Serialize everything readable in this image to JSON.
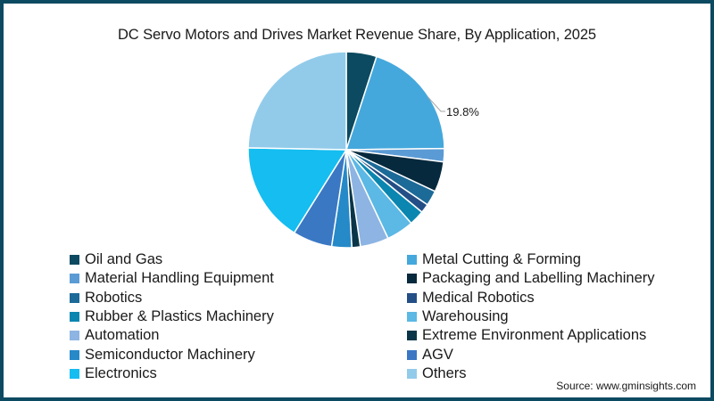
{
  "title": "DC Servo Motors and Drives Market Revenue Share, By Application, 2025",
  "source": "Source: www.gminsights.com",
  "frame_color": "#0c4a62",
  "chart_data": {
    "type": "pie",
    "title": "DC Servo Motors and Drives Market Revenue Share, By Application, 2025",
    "start_angle_deg": 0,
    "direction": "clockwise",
    "legend_position": "bottom",
    "categories": [
      "Oil and Gas",
      "Metal Cutting & Forming",
      "Material Handling Equipment",
      "Packaging and Labelling Machinery",
      "Robotics",
      "Medical Robotics",
      "Rubber & Plastics Machinery",
      "Warehousing",
      "Automation",
      "Extreme Environment Applications",
      "Semiconductor Machinery",
      "AGV",
      "Electronics",
      "Others"
    ],
    "values": [
      5.0,
      19.8,
      2.2,
      5.0,
      2.5,
      1.5,
      2.5,
      4.5,
      4.7,
      1.4,
      3.3,
      6.5,
      16.4,
      24.7
    ],
    "colors": [
      "#0b4a60",
      "#45a8dc",
      "#5b9bd5",
      "#06293d",
      "#1c6a98",
      "#244f86",
      "#0a86b0",
      "#5cb8e4",
      "#8db4e2",
      "#0a3548",
      "#2689c8",
      "#3a78c4",
      "#15bdf0",
      "#92cbea"
    ],
    "annotations": [
      {
        "category": "Metal Cutting & Forming",
        "label": "19.8%"
      }
    ]
  },
  "legend": {
    "left": [
      {
        "label": "Oil and Gas",
        "color": "#0b4a60"
      },
      {
        "label": "Material Handling Equipment",
        "color": "#5b9bd5"
      },
      {
        "label": "Robotics",
        "color": "#1c6a98"
      },
      {
        "label": "Rubber & Plastics Machinery",
        "color": "#0a86b0"
      },
      {
        "label": "Automation",
        "color": "#8db4e2"
      },
      {
        "label": "Semiconductor Machinery",
        "color": "#2689c8"
      },
      {
        "label": "Electronics",
        "color": "#15bdf0"
      }
    ],
    "right": [
      {
        "label": "Metal Cutting & Forming",
        "color": "#45a8dc"
      },
      {
        "label": "Packaging and Labelling Machinery",
        "color": "#06293d"
      },
      {
        "label": "Medical Robotics",
        "color": "#244f86"
      },
      {
        "label": "Warehousing",
        "color": "#5cb8e4"
      },
      {
        "label": "Extreme Environment Applications",
        "color": "#0a3548"
      },
      {
        "label": "AGV",
        "color": "#3a78c4"
      },
      {
        "label": "Others",
        "color": "#92cbea"
      }
    ]
  }
}
